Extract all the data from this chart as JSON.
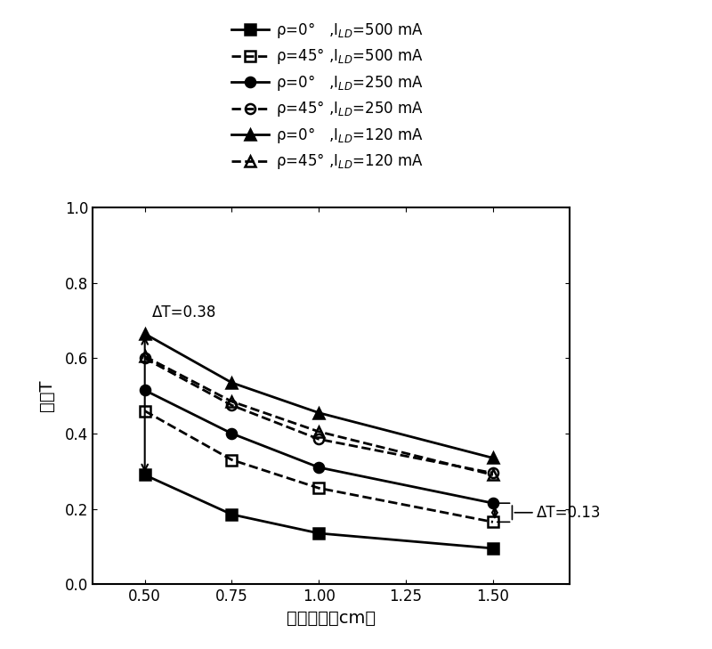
{
  "x": [
    0.5,
    0.75,
    1.0,
    1.5
  ],
  "series": [
    {
      "label_rho": "ρ=0°   ,",
      "label_I": "I",
      "label_sub": "LD",
      "label_val": "=500 mA",
      "y": [
        0.29,
        0.185,
        0.135,
        0.095
      ],
      "marker": "s",
      "fillstyle": "full",
      "linestyle": "-",
      "color": "#000000",
      "linewidth": 2.0
    },
    {
      "label_rho": "ρ=45° ,",
      "label_I": "I",
      "label_sub": "LD",
      "label_val": "=500 mA",
      "y": [
        0.46,
        0.33,
        0.255,
        0.165
      ],
      "marker": "s",
      "fillstyle": "none",
      "linestyle": "--",
      "color": "#000000",
      "linewidth": 2.0
    },
    {
      "label_rho": "ρ=0°   ,",
      "label_I": "I",
      "label_sub": "LD",
      "label_val": "=250 mA",
      "y": [
        0.515,
        0.4,
        0.31,
        0.215
      ],
      "marker": "o",
      "fillstyle": "full",
      "linestyle": "-",
      "color": "#000000",
      "linewidth": 2.0
    },
    {
      "label_rho": "ρ=45° ,",
      "label_I": "I",
      "label_sub": "LD",
      "label_val": "=250 mA",
      "y": [
        0.6,
        0.475,
        0.385,
        0.295
      ],
      "marker": "o",
      "fillstyle": "none",
      "linestyle": "--",
      "color": "#000000",
      "linewidth": 2.0
    },
    {
      "label_rho": "ρ=0°   ,",
      "label_I": "I",
      "label_sub": "LD",
      "label_val": "=120 mA",
      "y": [
        0.665,
        0.535,
        0.455,
        0.335
      ],
      "marker": "^",
      "fillstyle": "full",
      "linestyle": "-",
      "color": "#000000",
      "linewidth": 2.0
    },
    {
      "label_rho": "ρ=45° ,",
      "label_I": "I",
      "label_sub": "LD",
      "label_val": "=120 mA",
      "y": [
        0.605,
        0.485,
        0.405,
        0.29
      ],
      "marker": "^",
      "fillstyle": "none",
      "linestyle": "--",
      "color": "#000000",
      "linewidth": 2.0
    }
  ],
  "xlabel": "路径长度［cm］",
  "ylabel": "透射T",
  "xlim": [
    0.35,
    1.72
  ],
  "ylim": [
    0.0,
    1.0
  ],
  "xticks": [
    0.5,
    0.75,
    1.0,
    1.25,
    1.5
  ],
  "yticks": [
    0.0,
    0.2,
    0.4,
    0.6,
    0.8,
    1.0
  ],
  "annotation_left_text": "ΔT=0.38",
  "annotation_right_text": "ΔT=0.13",
  "figsize": [
    8.0,
    7.29
  ],
  "dpi": 100
}
